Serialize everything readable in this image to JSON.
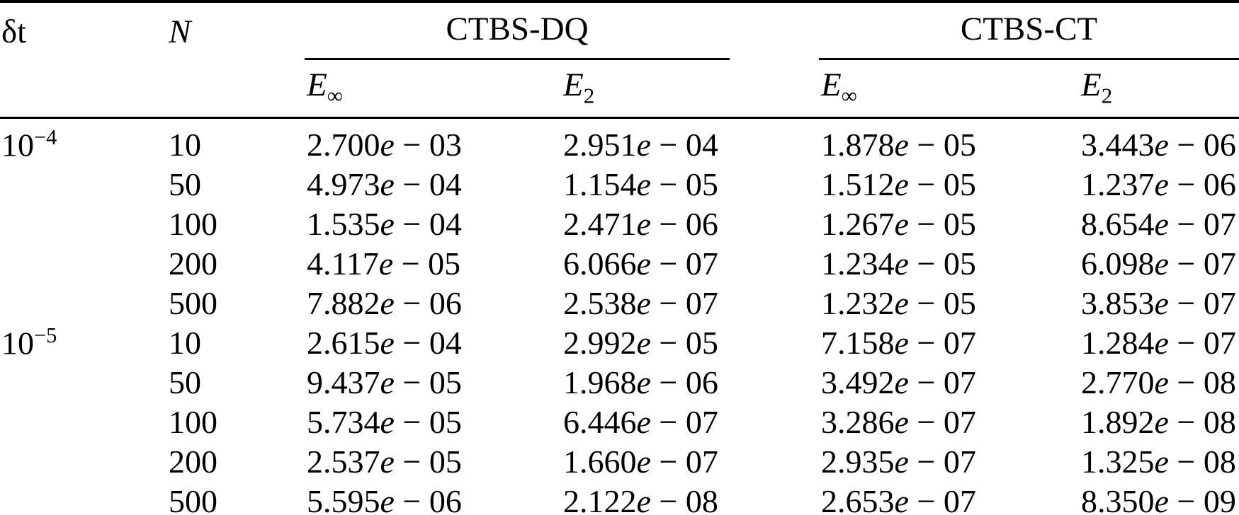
{
  "table": {
    "headers": {
      "dt_label": "δt",
      "n_label": "N",
      "group1": "CTBS-DQ",
      "group2": "CTBS-CT",
      "e_inf": {
        "base": "E",
        "sub": "∞"
      },
      "e_2": {
        "base": "E",
        "sub": "2"
      }
    },
    "rows": [
      {
        "dt": {
          "base": "10",
          "sup": "−4"
        },
        "n": "10",
        "dq_einf": "2.700e-03",
        "dq_e2": "2.951e-04",
        "ct_einf": "1.878e-05",
        "ct_e2": "3.443e-06"
      },
      {
        "dt": null,
        "n": "50",
        "dq_einf": "4.973e-04",
        "dq_e2": "1.154e-05",
        "ct_einf": "1.512e-05",
        "ct_e2": "1.237e-06"
      },
      {
        "dt": null,
        "n": "100",
        "dq_einf": "1.535e-04",
        "dq_e2": "2.471e-06",
        "ct_einf": "1.267e-05",
        "ct_e2": "8.654e-07"
      },
      {
        "dt": null,
        "n": "200",
        "dq_einf": "4.117e-05",
        "dq_e2": "6.066e-07",
        "ct_einf": "1.234e-05",
        "ct_e2": "6.098e-07"
      },
      {
        "dt": null,
        "n": "500",
        "dq_einf": "7.882e-06",
        "dq_e2": "2.538e-07",
        "ct_einf": "1.232e-05",
        "ct_e2": "3.853e-07"
      },
      {
        "dt": {
          "base": "10",
          "sup": "−5"
        },
        "n": "10",
        "dq_einf": "2.615e-04",
        "dq_e2": "2.992e-05",
        "ct_einf": "7.158e-07",
        "ct_e2": "1.284e-07"
      },
      {
        "dt": null,
        "n": "50",
        "dq_einf": "9.437e-05",
        "dq_e2": "1.968e-06",
        "ct_einf": "3.492e-07",
        "ct_e2": "2.770e-08"
      },
      {
        "dt": null,
        "n": "100",
        "dq_einf": "5.734e-05",
        "dq_e2": "6.446e-07",
        "ct_einf": "3.286e-07",
        "ct_e2": "1.892e-08"
      },
      {
        "dt": null,
        "n": "200",
        "dq_einf": "2.537e-05",
        "dq_e2": "1.660e-07",
        "ct_einf": "2.935e-07",
        "ct_e2": "1.325e-08"
      },
      {
        "dt": null,
        "n": "500",
        "dq_einf": "5.595e-06",
        "dq_e2": "2.122e-08",
        "ct_einf": "2.653e-07",
        "ct_e2": "8.350e-09"
      }
    ]
  }
}
